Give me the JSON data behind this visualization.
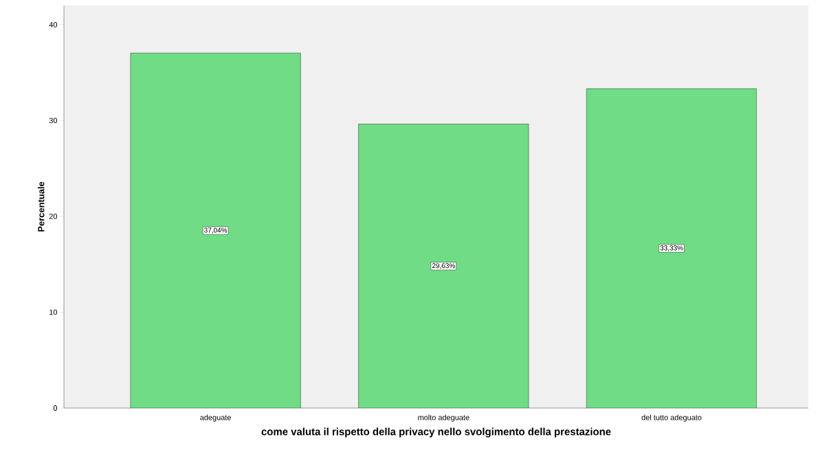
{
  "chart_data": {
    "type": "bar",
    "xlabel": "come valuta il rispetto della privacy nello svolgimento della prestazione",
    "ylabel": "Percentuale",
    "categories": [
      "adeguate",
      "molto adeguate",
      "del tutto adeguato"
    ],
    "values": [
      37.04,
      29.63,
      33.33
    ],
    "value_labels": [
      "37,04%",
      "29,63%",
      "33,33%"
    ],
    "color": "#70dc86",
    "ylim": [
      0,
      42
    ],
    "yticks": [
      0,
      10,
      20,
      30,
      40
    ]
  }
}
